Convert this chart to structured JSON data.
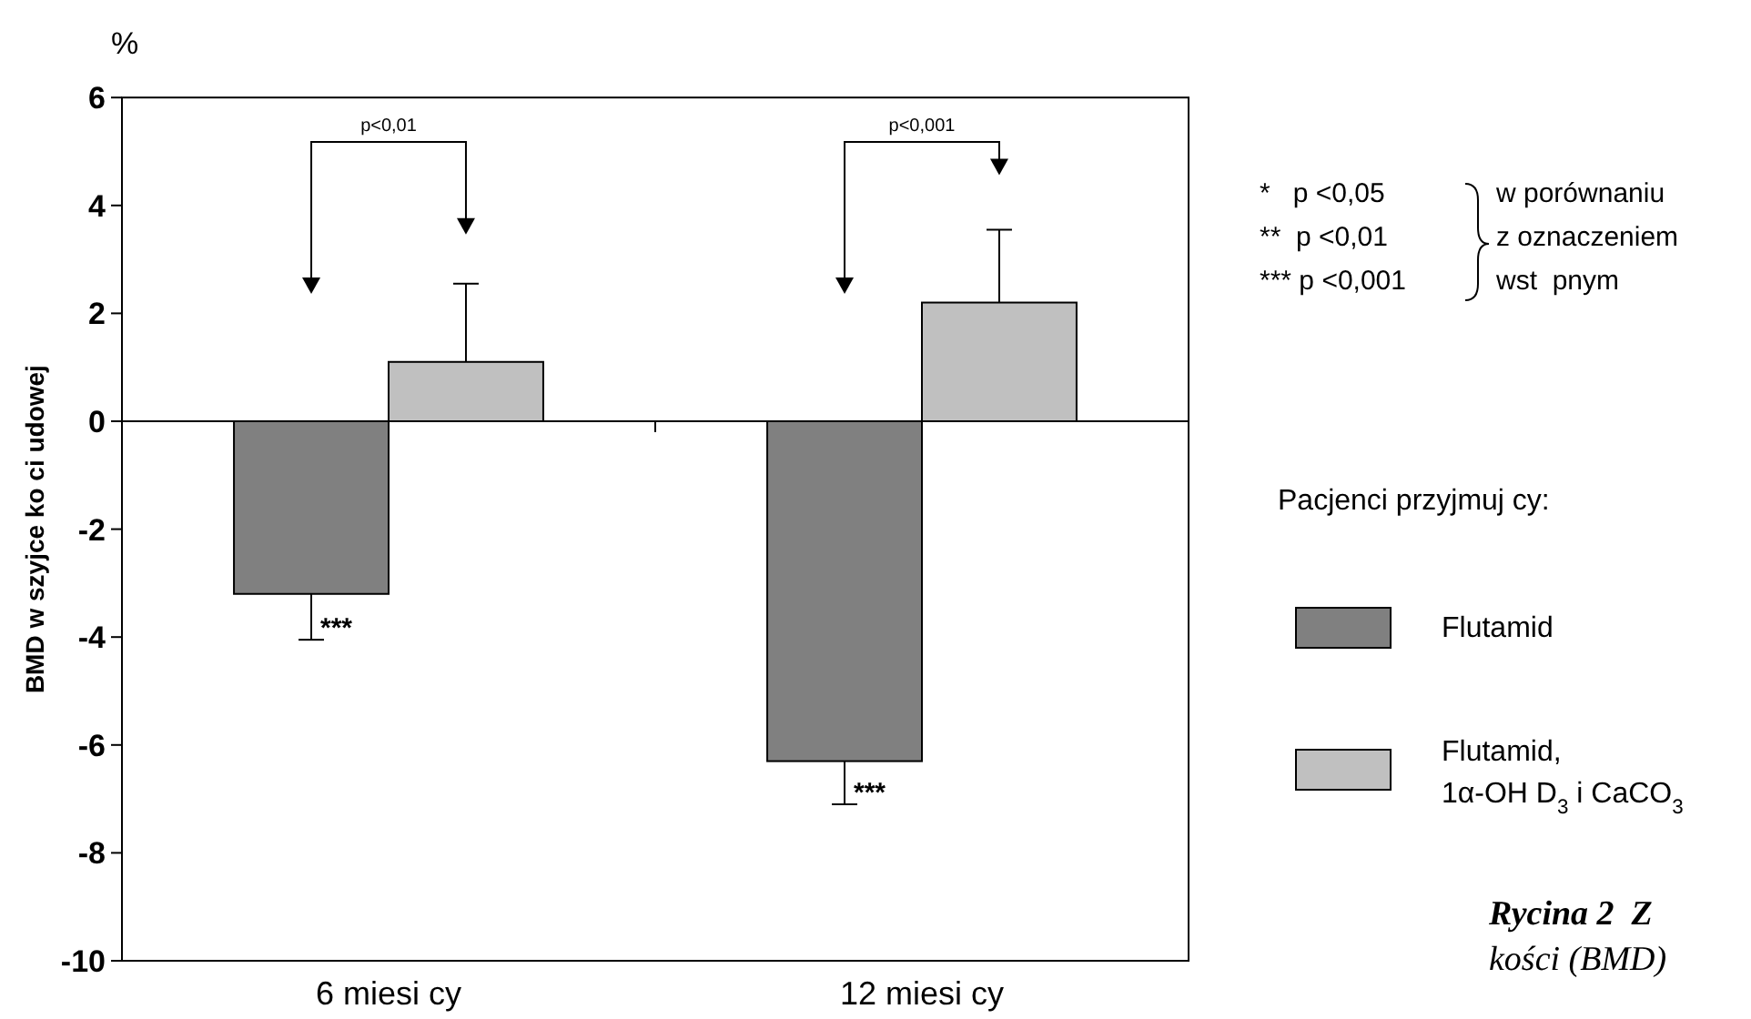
{
  "chart_data": {
    "type": "bar",
    "ylabel": "BMD w szyjce ko   ci udowej",
    "legend_title": "Pacjenci przyjmuj  cy:",
    "categories": [
      "6 miesi   cy",
      "12 miesi  cy"
    ],
    "series": [
      {
        "name": "Flutamid",
        "color": "#808080",
        "values": [
          -3.2,
          -6.3
        ],
        "errors": [
          0.85,
          0.8
        ]
      },
      {
        "name": "Flutamid, 1α-OH D$_{3}$ i CaCO$_{3}$",
        "color": "#c0c0c0",
        "values": [
          1.1,
          2.2
        ],
        "errors": [
          1.45,
          1.35
        ]
      }
    ],
    "ylim": [
      -10,
      6
    ],
    "yticks": [
      -10,
      -8,
      -6,
      -4,
      -2,
      0,
      2,
      4,
      6
    ],
    "legend": "right",
    "annotations": [
      "%",
      "p<0,01",
      "p<0,001",
      "***",
      "***",
      "*   p <0,05",
      "**  p <0,01",
      "*** p <0,001",
      "w porównaniu",
      "z oznaczeniem",
      "wst  pnym",
      "Rycina 2  Z",
      "kości (BMD)"
    ]
  }
}
